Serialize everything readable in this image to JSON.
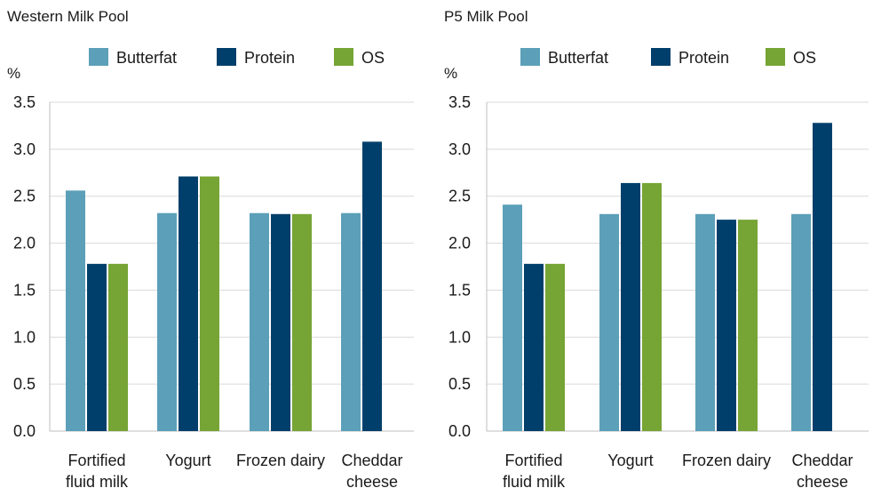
{
  "chart_data": [
    {
      "type": "bar",
      "title": "Western Milk Pool",
      "ylabel": "%",
      "ylim": [
        0,
        3.5
      ],
      "yticks": [
        "0.0",
        "0.5",
        "1.0",
        "1.5",
        "2.0",
        "2.5",
        "3.0",
        "3.5"
      ],
      "categories": [
        [
          "Fortified",
          "fluid milk"
        ],
        [
          "Yogurt"
        ],
        [
          "Frozen dairy"
        ],
        [
          "Cheddar",
          "cheese"
        ]
      ],
      "series": [
        {
          "name": "Butterfat",
          "color": "#5b9fb8",
          "values": [
            2.56,
            2.32,
            2.32,
            2.32
          ]
        },
        {
          "name": "Protein",
          "color": "#003f6b",
          "values": [
            1.78,
            2.71,
            2.31,
            3.08
          ]
        },
        {
          "name": "OS",
          "color": "#76a435",
          "values": [
            1.78,
            2.71,
            2.31,
            null
          ]
        }
      ],
      "legend": "top"
    },
    {
      "type": "bar",
      "title": "P5 Milk Pool",
      "ylabel": "%",
      "ylim": [
        0,
        3.5
      ],
      "yticks": [
        "0.0",
        "0.5",
        "1.0",
        "1.5",
        "2.0",
        "2.5",
        "3.0",
        "3.5"
      ],
      "categories": [
        [
          "Fortified",
          "fluid milk"
        ],
        [
          "Yogurt"
        ],
        [
          "Frozen dairy"
        ],
        [
          "Cheddar",
          "cheese"
        ]
      ],
      "series": [
        {
          "name": "Butterfat",
          "color": "#5b9fb8",
          "values": [
            2.41,
            2.31,
            2.31,
            2.31
          ]
        },
        {
          "name": "Protein",
          "color": "#003f6b",
          "values": [
            1.78,
            2.64,
            2.25,
            3.28
          ]
        },
        {
          "name": "OS",
          "color": "#76a435",
          "values": [
            1.78,
            2.64,
            2.25,
            null
          ]
        }
      ],
      "legend": "top"
    }
  ]
}
